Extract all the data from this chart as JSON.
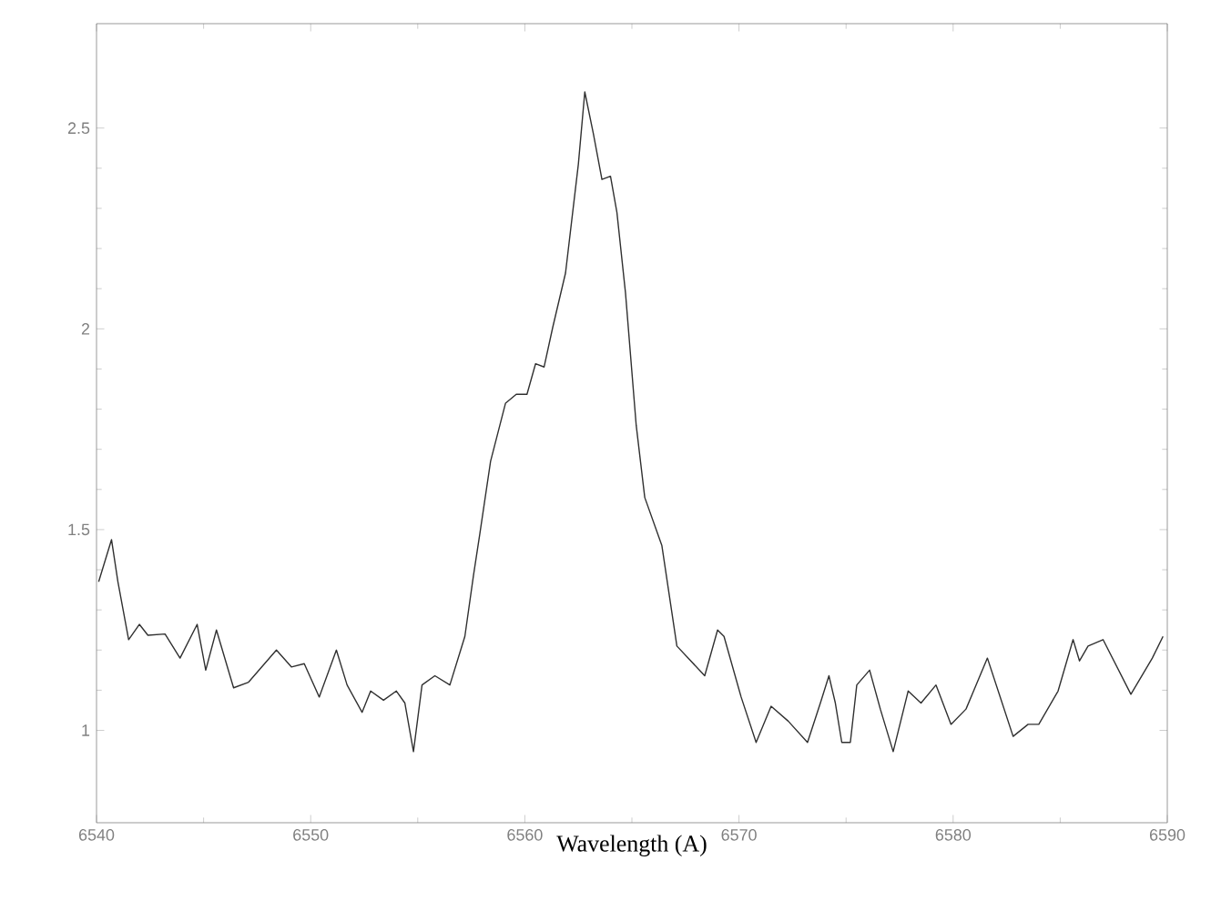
{
  "chart_data": {
    "type": "line",
    "xlabel": "Wavelength (A)",
    "xlim": [
      6540,
      6590
    ],
    "ylim": [
      0.77,
      2.76
    ],
    "xticks": [
      6540,
      6550,
      6560,
      6570,
      6580,
      6590
    ],
    "yticks": [
      1,
      1.5,
      2,
      2.5
    ],
    "grid": false,
    "line_style": "solid",
    "marker": "none",
    "series": [
      {
        "color": "#303030",
        "x": [
          6540.1,
          6540.7,
          6541.0,
          6541.5,
          6542.0,
          6542.4,
          6543.2,
          6543.9,
          6544.7,
          6545.1,
          6545.6,
          6546.4,
          6547.1,
          6548.4,
          6549.1,
          6549.7,
          6550.4,
          6551.2,
          6551.7,
          6552.4,
          6552.8,
          6553.4,
          6554.0,
          6554.4,
          6554.8,
          6555.2,
          6555.8,
          6556.5,
          6557.2,
          6557.6,
          6557.9,
          6558.4,
          6559.1,
          6559.6,
          6560.1,
          6560.5,
          6560.9,
          6561.3,
          6561.9,
          6562.5,
          6562.8,
          6563.2,
          6563.6,
          6564.0,
          6564.3,
          6564.7,
          6565.2,
          6565.6,
          6566.4,
          6567.1,
          6568.4,
          6569.0,
          6569.3,
          6570.1,
          6570.8,
          6571.5,
          6572.3,
          6573.2,
          6573.8,
          6574.2,
          6574.5,
          6574.8,
          6575.2,
          6575.5,
          6576.1,
          6576.6,
          6577.2,
          6577.9,
          6578.5,
          6579.2,
          6579.9,
          6580.6,
          6581.6,
          6582.8,
          6583.5,
          6584.0,
          6584.9,
          6585.6,
          6585.9,
          6586.3,
          6587.0,
          6588.3,
          6589.3,
          6589.8
        ],
        "values": [
          1.37,
          1.475,
          1.37,
          1.226,
          1.264,
          1.237,
          1.24,
          1.18,
          1.264,
          1.15,
          1.25,
          1.106,
          1.12,
          1.2,
          1.158,
          1.166,
          1.083,
          1.2,
          1.113,
          1.045,
          1.098,
          1.075,
          1.098,
          1.068,
          0.947,
          1.113,
          1.136,
          1.113,
          1.234,
          1.385,
          1.49,
          1.67,
          1.815,
          1.837,
          1.837,
          1.913,
          1.905,
          2.003,
          2.139,
          2.41,
          2.59,
          2.486,
          2.372,
          2.38,
          2.29,
          2.09,
          1.76,
          1.58,
          1.46,
          1.21,
          1.136,
          1.25,
          1.234,
          1.083,
          0.97,
          1.06,
          1.023,
          0.97,
          1.068,
          1.136,
          1.068,
          0.97,
          0.97,
          1.113,
          1.15,
          1.053,
          0.947,
          1.098,
          1.068,
          1.113,
          1.015,
          1.053,
          1.18,
          0.985,
          1.015,
          1.015,
          1.098,
          1.226,
          1.173,
          1.21,
          1.226,
          1.09,
          1.18,
          1.234
        ]
      }
    ]
  }
}
